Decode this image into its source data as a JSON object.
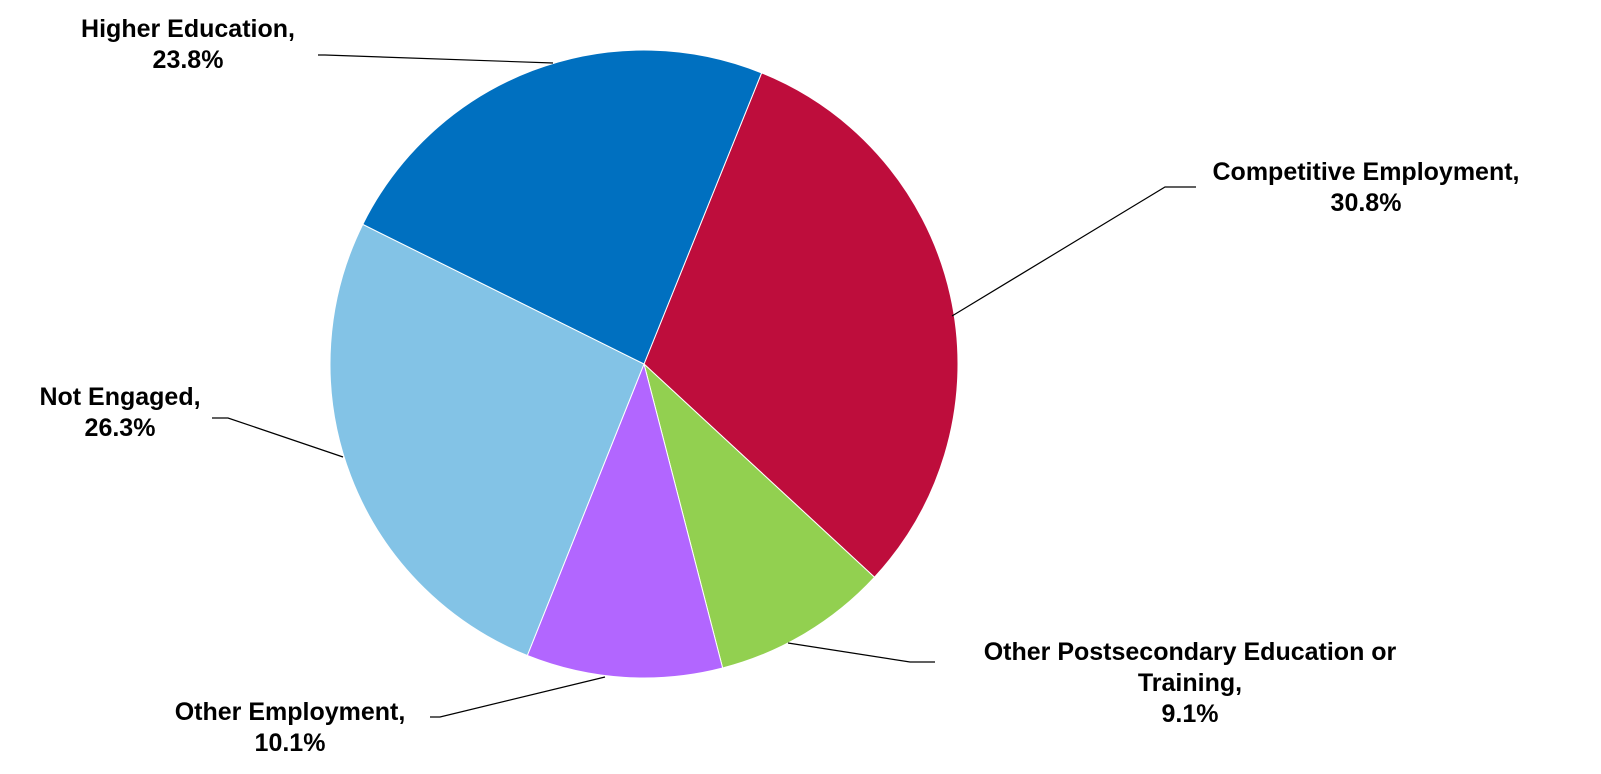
{
  "chart_data": {
    "type": "pie",
    "title": "",
    "legend": "none",
    "start_angle_deg": 22,
    "direction": "clockwise",
    "slices": [
      {
        "category": "Competitive Employment",
        "label_lines": [
          "Competitive Employment,",
          "30.8%"
        ],
        "value": 30.8,
        "color": "#BE0D3C"
      },
      {
        "category": "Other Postsecondary Education or Training",
        "label_lines": [
          "Other Postsecondary Education or",
          "Training,",
          "9.1%"
        ],
        "value": 9.1,
        "color": "#92D050"
      },
      {
        "category": "Other Employment",
        "label_lines": [
          "Other Employment,",
          "10.1%"
        ],
        "value": 10.1,
        "color": "#B266FF"
      },
      {
        "category": "Not Engaged",
        "label_lines": [
          "Not Engaged,",
          "26.3%"
        ],
        "value": 26.3,
        "color": "#83C3E6"
      },
      {
        "category": "Higher Education",
        "label_lines": [
          "Higher Education,",
          "23.8%"
        ],
        "value": 23.8,
        "color": "#0070C0"
      }
    ]
  }
}
